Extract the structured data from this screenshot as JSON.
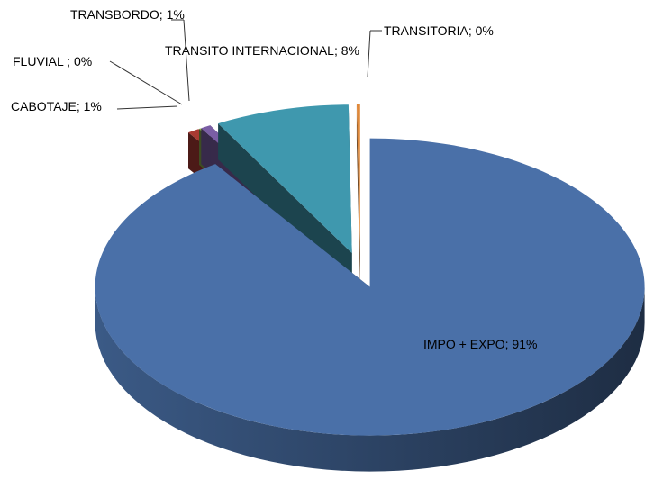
{
  "chart_data": {
    "type": "pie",
    "labels": [
      "IMPO + EXPO; 91%",
      "CABOTAJE; 1%",
      "FLUVIAL ; 0%",
      "TRANSBORDO; 1%",
      "TRANSITO INTERNACIONAL; 8%",
      "TRANSITORIA; 0%"
    ],
    "values": [
      90.5,
      0.7,
      0.1,
      0.6,
      7.9,
      0.2
    ],
    "colors": [
      "#4a70a8",
      "#a83a32",
      "#8aab4c",
      "#7a5ea4",
      "#3f98ae",
      "#e0893a"
    ]
  }
}
